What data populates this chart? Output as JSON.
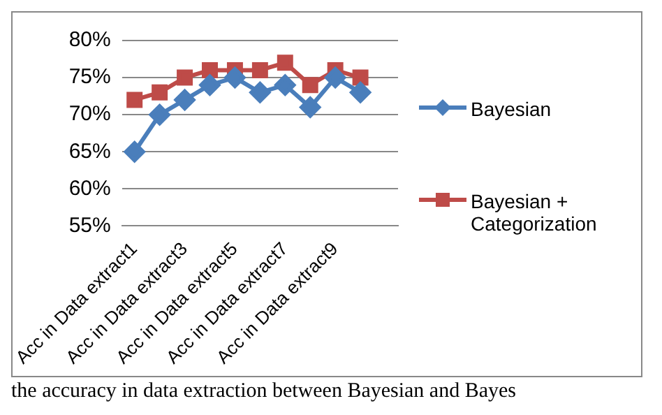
{
  "chart_data": {
    "type": "line",
    "categories": [
      "Acc in Data extract1",
      null,
      "Acc in Data extract3",
      null,
      "Acc in Data extract5",
      null,
      "Acc in Data extract7",
      null,
      "Acc in Data extract9",
      null,
      null
    ],
    "series": [
      {
        "name": "Bayesian",
        "color": "#4a7ebb",
        "marker": "diamond",
        "values": [
          65,
          70,
          72,
          74,
          75,
          73,
          74,
          71,
          75,
          73,
          null
        ]
      },
      {
        "name": "Bayesian + Categorization",
        "color": "#be4b48",
        "marker": "square",
        "values": [
          72,
          73,
          75,
          76,
          76,
          76,
          77,
          74,
          76,
          75,
          null
        ]
      }
    ],
    "ylim": [
      55,
      80
    ],
    "yticks": [
      {
        "value": 55,
        "label": "55%"
      },
      {
        "value": 60,
        "label": "60%"
      },
      {
        "value": 65,
        "label": "65%"
      },
      {
        "value": 70,
        "label": "70%"
      },
      {
        "value": 75,
        "label": "75%"
      },
      {
        "value": 80,
        "label": "80%"
      }
    ],
    "grid": "y",
    "legend": "right",
    "line_style": "solid",
    "annotations": [
      "the accuracy in data extraction between Bayesian and Bayes"
    ]
  }
}
